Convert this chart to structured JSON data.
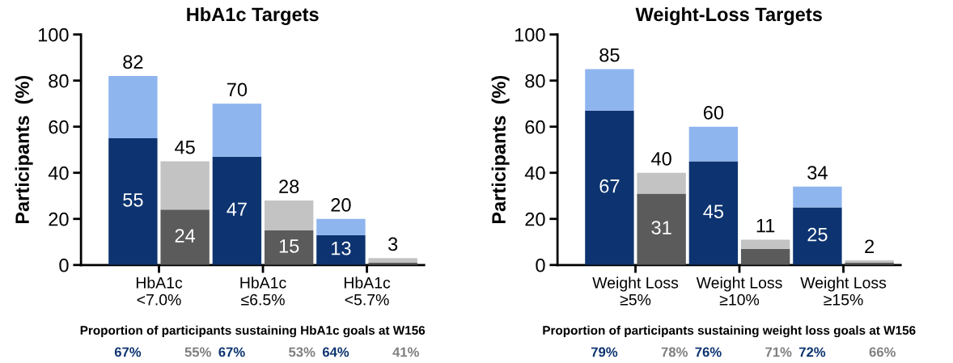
{
  "chart_data": [
    {
      "type": "bar",
      "stacked": true,
      "title": "HbA1c Targets",
      "ylabel": "Participants  (%)",
      "categories": [
        "HbA1c\n<7.0%",
        null,
        "HbA1c\n≤6.5%",
        null,
        "HbA1c\n<5.7%",
        null
      ],
      "ylim": [
        0,
        100
      ],
      "yticks": [
        0,
        20,
        40,
        60,
        80,
        100
      ],
      "grid": false,
      "legend": false,
      "series": [
        {
          "colors": [
            "#0d3470",
            "#5b5b5b",
            "#0d3470",
            "#5b5b5b",
            "#0d3470",
            "#5b5b5b"
          ],
          "values": [
            55,
            24,
            47,
            15,
            13,
            1
          ],
          "value_labels": [
            "55",
            "24",
            "47",
            "15",
            "13",
            null
          ]
        },
        {
          "colors": [
            "#8fb5ef",
            "#c3c3c3",
            "#8fb5ef",
            "#c3c3c3",
            "#8fb5ef",
            "#c3c3c3"
          ],
          "values": [
            27,
            21,
            23,
            13,
            7,
            2
          ]
        }
      ],
      "totals": [
        "82",
        "45",
        "70",
        "28",
        "20",
        "3"
      ],
      "annotations": [
        "Proportion of participants sustaining HbA1c goals at W156",
        "67%",
        "55%",
        "67%",
        "53%",
        "64%",
        "41%"
      ]
    },
    {
      "type": "bar",
      "stacked": true,
      "title": "Weight-Loss Targets",
      "ylabel": "Participants  (%)",
      "categories": [
        "Weight Loss\n≥5%",
        null,
        "Weight Loss\n≥10%",
        null,
        "Weight Loss\n≥15%",
        null
      ],
      "ylim": [
        0,
        100
      ],
      "yticks": [
        0,
        20,
        40,
        60,
        80,
        100
      ],
      "grid": false,
      "legend": false,
      "series": [
        {
          "colors": [
            "#0d3470",
            "#5b5b5b",
            "#0d3470",
            "#5b5b5b",
            "#0d3470",
            "#5b5b5b"
          ],
          "values": [
            67,
            31,
            45,
            7,
            25,
            1
          ],
          "value_labels": [
            "67",
            "31",
            "45",
            null,
            "25",
            null
          ]
        },
        {
          "colors": [
            "#8fb5ef",
            "#c3c3c3",
            "#8fb5ef",
            "#c3c3c3",
            "#8fb5ef",
            "#c3c3c3"
          ],
          "values": [
            18,
            9,
            15,
            4,
            9,
            1
          ]
        }
      ],
      "totals": [
        "85",
        "40",
        "60",
        "11",
        "34",
        "2"
      ],
      "annotations": [
        "Proportion of participants sustaining weight loss goals at W156",
        "79%",
        "78%",
        "76%",
        "71%",
        "72%",
        "66%"
      ]
    }
  ]
}
